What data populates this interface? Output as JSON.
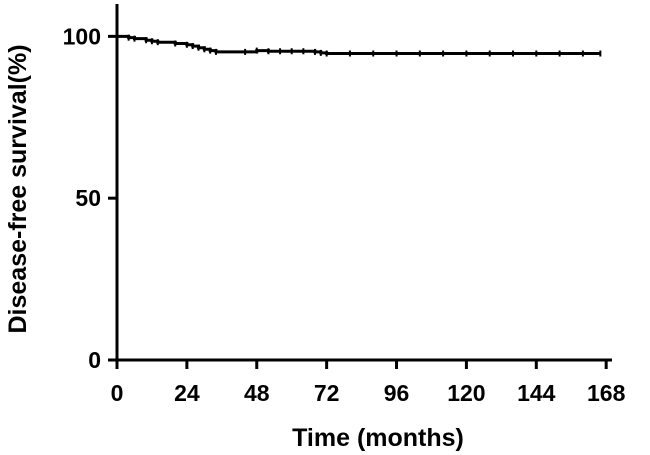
{
  "chart_data": {
    "type": "line",
    "title": "",
    "xlabel": "Time (months)",
    "ylabel": "Disease-free survival(%)",
    "xlim": [
      0,
      170
    ],
    "ylim": [
      0,
      110
    ],
    "xticks": [
      0,
      24,
      48,
      72,
      96,
      120,
      144,
      168
    ],
    "yticks": [
      0,
      50,
      100
    ],
    "grid": false,
    "legend": "none",
    "line_color": "#000000",
    "series": [
      {
        "name": "",
        "step": true,
        "x": [
          0,
          4,
          6,
          10,
          12,
          14,
          20,
          24,
          26,
          28,
          30,
          32,
          34,
          44,
          48,
          52,
          56,
          60,
          64,
          68,
          70,
          72,
          80,
          88,
          96,
          104,
          112,
          120,
          128,
          136,
          144,
          152,
          160,
          166
        ],
        "y": [
          100,
          99.6,
          99.3,
          98.8,
          98.5,
          98.2,
          97.8,
          97.4,
          97,
          96.5,
          96,
          95.6,
          95.2,
          95.2,
          95.6,
          95.4,
          95.4,
          95.4,
          95.4,
          95.2,
          94.9,
          94.7,
          94.7,
          94.7,
          94.7,
          94.7,
          94.7,
          94.7,
          94.7,
          94.7,
          94.7,
          94.7,
          94.7,
          94.7
        ]
      }
    ]
  }
}
